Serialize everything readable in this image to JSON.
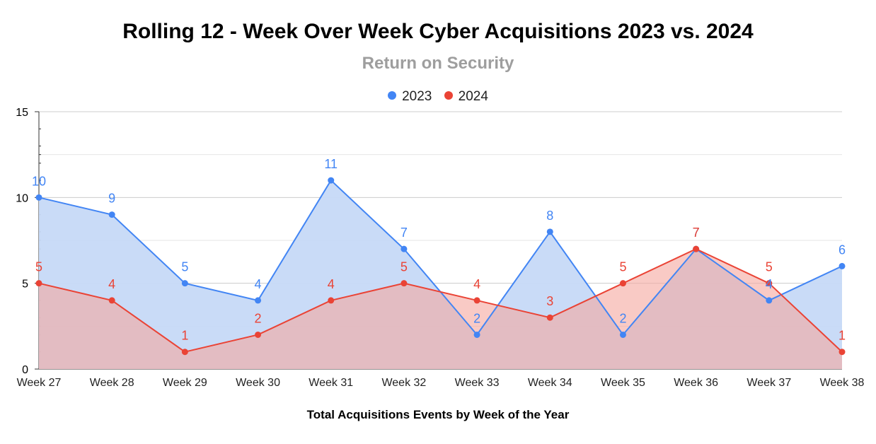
{
  "chart_data": {
    "type": "area",
    "title": "Rolling 12 - Week Over Week Cyber Acquisitions 2023 vs. 2024",
    "subtitle": "Return on Security",
    "xlabel": "Total Acquisitions Events by Week of the Year",
    "ylabel": "",
    "categories": [
      "Week 27",
      "Week 28",
      "Week 29",
      "Week 30",
      "Week 31",
      "Week 32",
      "Week 33",
      "Week 34",
      "Week 35",
      "Week 36",
      "Week 37",
      "Week 38"
    ],
    "ylim": [
      0,
      15
    ],
    "yticks": [
      "0",
      "5",
      "10",
      "15"
    ],
    "grid": true,
    "legend_position": "top",
    "series": [
      {
        "name": "2023",
        "color": "#4285f4",
        "fill": "#c6d9f7",
        "values": [
          10,
          9,
          5,
          4,
          11,
          7,
          2,
          8,
          2,
          7,
          4,
          6
        ]
      },
      {
        "name": "2024",
        "color": "#ea4335",
        "fill": "#f5a69e",
        "values": [
          5,
          4,
          1,
          2,
          4,
          5,
          4,
          3,
          5,
          7,
          5,
          1
        ]
      }
    ]
  }
}
